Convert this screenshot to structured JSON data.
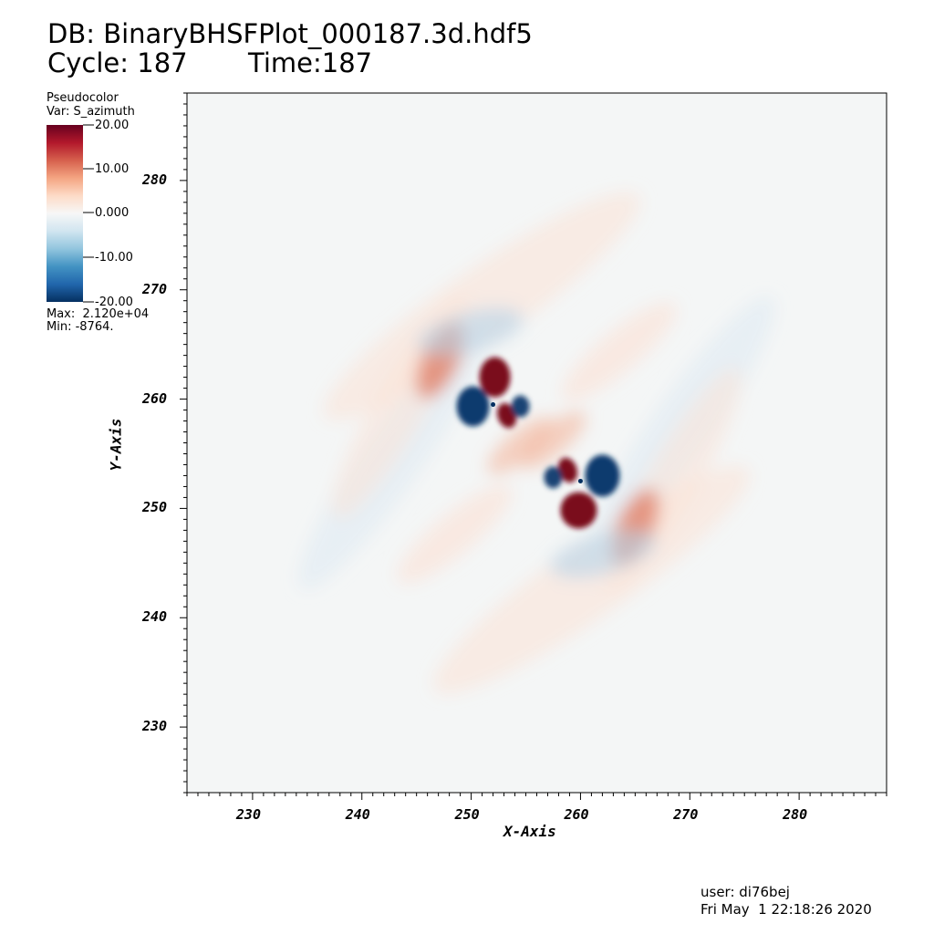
{
  "header": {
    "db_line": "DB: BinaryBHSFPlot_000187.3d.hdf5",
    "cycle_label": "Cycle: 187",
    "time_label": "Time:187"
  },
  "legend": {
    "plot_type": "Pseudocolor",
    "variable": "Var: S_azimuth",
    "max_label": "Max:  2.120e+04",
    "min_label": "Min: -8764.",
    "colormap": [
      "#053061",
      "#2166ac",
      "#4393c3",
      "#92c5de",
      "#d1e5f0",
      "#f7f7f7",
      "#fddbc7",
      "#f4a582",
      "#d6604d",
      "#b2182b",
      "#67001f"
    ],
    "tick_labels": [
      "20.00",
      "10.00",
      "0.000",
      "-10.00",
      "-20.00"
    ]
  },
  "chart_data": {
    "type": "heatmap",
    "title": "DB: BinaryBHSFPlot_000187.3d.hdf5",
    "xlabel": "X-Axis",
    "ylabel": "Y-Axis",
    "xlim": [
      224,
      288
    ],
    "ylim": [
      224,
      288
    ],
    "xticks": [
      230,
      240,
      250,
      260,
      270,
      280
    ],
    "yticks": [
      230,
      240,
      250,
      260,
      270,
      280
    ],
    "color_range": [
      -20,
      20
    ],
    "variable": "S_azimuth",
    "max": 21200,
    "min": -8764,
    "sources": [
      {
        "x": 252,
        "y": 259.5
      },
      {
        "x": 260,
        "y": 252.5
      }
    ]
  },
  "footer": {
    "user": "user: di76bej",
    "date": "Fri May  1 22:18:26 2020"
  }
}
